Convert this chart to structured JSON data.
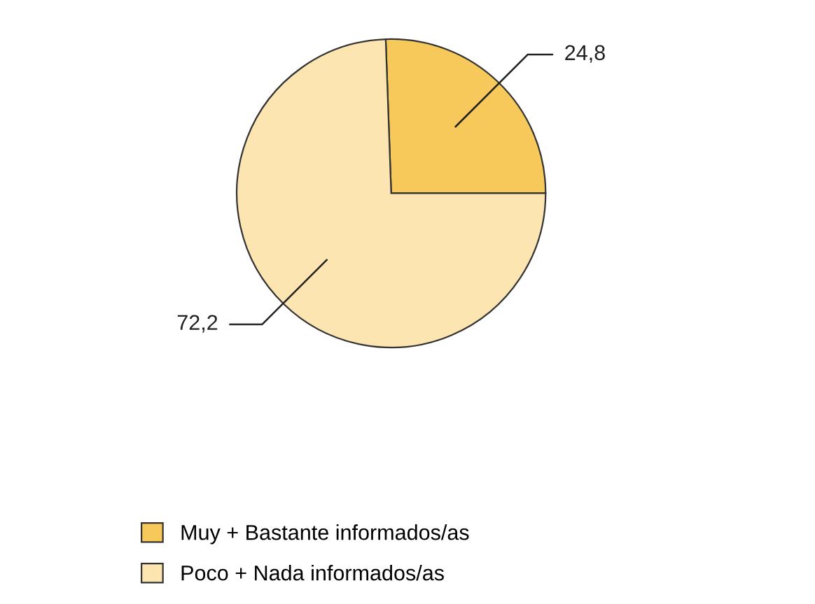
{
  "chart_data": {
    "type": "pie",
    "categories": [
      "Muy + Bastante informados/as",
      "Poco + Nada informados/as"
    ],
    "values": [
      24.8,
      72.2
    ],
    "value_labels": [
      "24,8",
      "72,2"
    ],
    "colors": [
      "#f6c95a",
      "#fce5b0"
    ],
    "legend": "bottom"
  }
}
